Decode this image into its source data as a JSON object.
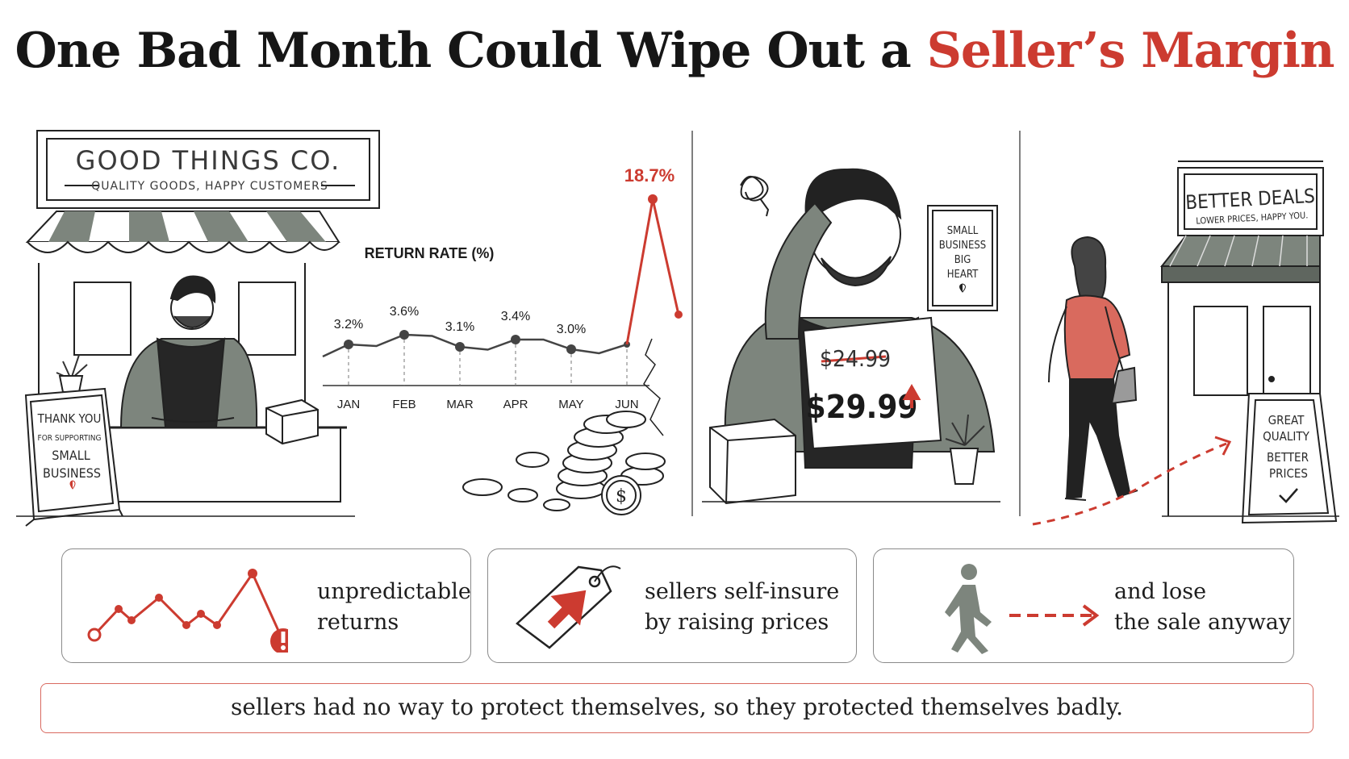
{
  "title": {
    "main": "One Bad Month Could Wipe Out a ",
    "accent": "Seller’s Margin"
  },
  "shop": {
    "sign_name": "GOOD THINGS CO.",
    "sign_tagline": "QUALITY GOODS, HAPPY CUSTOMERS",
    "aframe_line1": "THANK YOU",
    "aframe_line2": "FOR SUPPORTING",
    "aframe_line3": "SMALL",
    "aframe_line4": "BUSINESS"
  },
  "chart_data": {
    "type": "line",
    "title": "RETURN RATE (%)",
    "categories": [
      "JAN",
      "FEB",
      "MAR",
      "APR",
      "MAY",
      "JUN"
    ],
    "labeled_points": [
      {
        "month": "JAN",
        "value": 3.2,
        "label": "3.2%"
      },
      {
        "month": "FEB",
        "value": 3.6,
        "label": "3.6%"
      },
      {
        "month": "MAR",
        "value": 3.1,
        "label": "3.1%"
      },
      {
        "month": "APR",
        "value": 3.4,
        "label": "3.4%"
      },
      {
        "month": "MAY",
        "value": 3.0,
        "label": "3.0%"
      },
      {
        "month": "JUN",
        "value": 3.2,
        "label": ""
      }
    ],
    "spike": {
      "value": 18.7,
      "label": "18.7%"
    },
    "grid": false,
    "colors": {
      "normal": "#444444",
      "spike": "#cc3b30"
    }
  },
  "seller_panel": {
    "wall_sign_line1": "SMALL",
    "wall_sign_line2": "BUSINESS",
    "wall_sign_line3": "BIG",
    "wall_sign_line4": "HEART",
    "old_price": "$24.99",
    "new_price": "$29.99"
  },
  "competitor_panel": {
    "sign_title": "BETTER DEALS",
    "sign_tagline": "LOWER PRICES, HAPPY YOU.",
    "aframe_line1": "GREAT",
    "aframe_line2": "QUALITY",
    "aframe_line3": "BETTER",
    "aframe_line4": "PRICES"
  },
  "cards": [
    {
      "line1": "unpredictable",
      "line2": "returns",
      "icon": "spiky-line-chart-icon"
    },
    {
      "line1": "sellers self-insure",
      "line2": "by raising prices",
      "icon": "price-tag-up-arrow-icon"
    },
    {
      "line1": "and lose",
      "line2": "the sale anyway",
      "icon": "walking-person-icon"
    }
  ],
  "banner": "sellers had no way to protect themselves, so they protected themselves badly.",
  "colors": {
    "accent": "#cc3b30",
    "ink": "#1c1c1c",
    "gray": "#7d857d"
  }
}
